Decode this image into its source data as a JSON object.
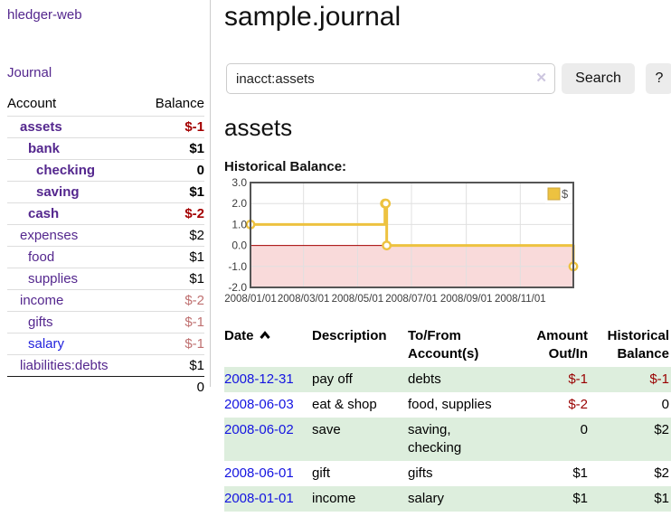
{
  "brand": "hledger-web",
  "nav": {
    "journal_label": "Journal"
  },
  "sidebar": {
    "header": {
      "account": "Account",
      "balance": "Balance"
    },
    "accounts": [
      {
        "name": "assets",
        "level": 1,
        "bold": true,
        "link_color": "purple",
        "balance": "$-1",
        "balance_style": "neg-strong"
      },
      {
        "name": "bank",
        "level": 2,
        "bold": true,
        "link_color": "purple",
        "balance": "$1",
        "balance_style": "pos"
      },
      {
        "name": "checking",
        "level": 3,
        "bold": true,
        "link_color": "purple",
        "balance": "0",
        "balance_style": "pos"
      },
      {
        "name": "saving",
        "level": 3,
        "bold": true,
        "link_color": "purple",
        "balance": "$1",
        "balance_style": "pos"
      },
      {
        "name": "cash",
        "level": 2,
        "bold": true,
        "link_color": "purple",
        "balance": "$-2",
        "balance_style": "neg-strong"
      },
      {
        "name": "expenses",
        "level": 1,
        "bold": false,
        "link_color": "purple",
        "balance": "$2",
        "balance_style": "pos"
      },
      {
        "name": "food",
        "level": 2,
        "bold": false,
        "link_color": "purple",
        "balance": "$1",
        "balance_style": "pos"
      },
      {
        "name": "supplies",
        "level": 2,
        "bold": false,
        "link_color": "purple",
        "balance": "$1",
        "balance_style": "pos"
      },
      {
        "name": "income",
        "level": 1,
        "bold": false,
        "link_color": "purple",
        "balance": "$-2",
        "balance_style": "neg-soft"
      },
      {
        "name": "gifts",
        "level": 2,
        "bold": false,
        "link_color": "purple",
        "balance": "$-1",
        "balance_style": "neg-soft"
      },
      {
        "name": "salary",
        "level": 2,
        "bold": false,
        "link_color": "blue",
        "balance": "$-1",
        "balance_style": "neg-soft"
      },
      {
        "name": "liabilities:debts",
        "level": 1,
        "bold": false,
        "link_color": "purple",
        "balance": "$1",
        "balance_style": "pos"
      }
    ],
    "total": "0"
  },
  "header": {
    "title": "sample.journal"
  },
  "search": {
    "query": "inacct:assets",
    "clear_icon": "✕",
    "search_label": "Search",
    "help_label": "?"
  },
  "account_page": {
    "heading": "assets",
    "chart_label": "Historical Balance:"
  },
  "chart_data": {
    "type": "line",
    "step": true,
    "title": "Historical Balance",
    "series": [
      {
        "name": "$",
        "color": "#edc240",
        "points": [
          {
            "x": "2008-01-01",
            "y": 1
          },
          {
            "x": "2008-06-01",
            "y": 2
          },
          {
            "x": "2008-06-02",
            "y": 2
          },
          {
            "x": "2008-06-03",
            "y": 0
          },
          {
            "x": "2008-12-31",
            "y": -1
          }
        ]
      }
    ],
    "xlim": [
      "2008-01-01",
      "2008-12-31"
    ],
    "ylim": [
      -2,
      3
    ],
    "x_ticks": [
      {
        "x": "2008-01-01",
        "label": "2008/01/01"
      },
      {
        "x": "2008-03-01",
        "label": "2008/03/01"
      },
      {
        "x": "2008-05-01",
        "label": "2008/05/01"
      },
      {
        "x": "2008-07-01",
        "label": "2008/07/01"
      },
      {
        "x": "2008-09-01",
        "label": "2008/09/01"
      },
      {
        "x": "2008-11-01",
        "label": "2008/11/01"
      }
    ],
    "y_ticks": [
      {
        "y": 3,
        "label": "3.0"
      },
      {
        "y": 2,
        "label": "2.0"
      },
      {
        "y": 1,
        "label": "1.0"
      },
      {
        "y": 0,
        "label": "0.0"
      },
      {
        "y": -1,
        "label": "-1.0"
      },
      {
        "y": -2,
        "label": "-2.0"
      }
    ],
    "grid": true,
    "legend": {
      "label": "$",
      "position": "top-right"
    },
    "colors": {
      "grid": "#e0e0e0",
      "border": "#555555",
      "negative_region": "#f9dada",
      "zero_line": "#a40000",
      "marker_fill": "#ffffff"
    }
  },
  "register": {
    "columns": {
      "date": "Date",
      "description": "Description",
      "accounts": "To/From Account(s)",
      "amount": "Amount Out/In",
      "balance": "Historical Balance"
    },
    "rows": [
      {
        "date": "2008-12-31",
        "description": "pay off",
        "accounts": "debts",
        "amount": "$-1",
        "amount_neg": true,
        "balance": "$-1",
        "balance_neg": true
      },
      {
        "date": "2008-06-03",
        "description": "eat & shop",
        "accounts": "food, supplies",
        "amount": "$-2",
        "amount_neg": true,
        "balance": "0",
        "balance_neg": false
      },
      {
        "date": "2008-06-02",
        "description": "save",
        "accounts": "saving, checking",
        "amount": "0",
        "amount_neg": false,
        "balance": "$2",
        "balance_neg": false
      },
      {
        "date": "2008-06-01",
        "description": "gift",
        "accounts": "gifts",
        "amount": "$1",
        "amount_neg": false,
        "balance": "$2",
        "balance_neg": false
      },
      {
        "date": "2008-01-01",
        "description": "income",
        "accounts": "salary",
        "amount": "$1",
        "amount_neg": false,
        "balance": "$1",
        "balance_neg": false
      }
    ]
  }
}
